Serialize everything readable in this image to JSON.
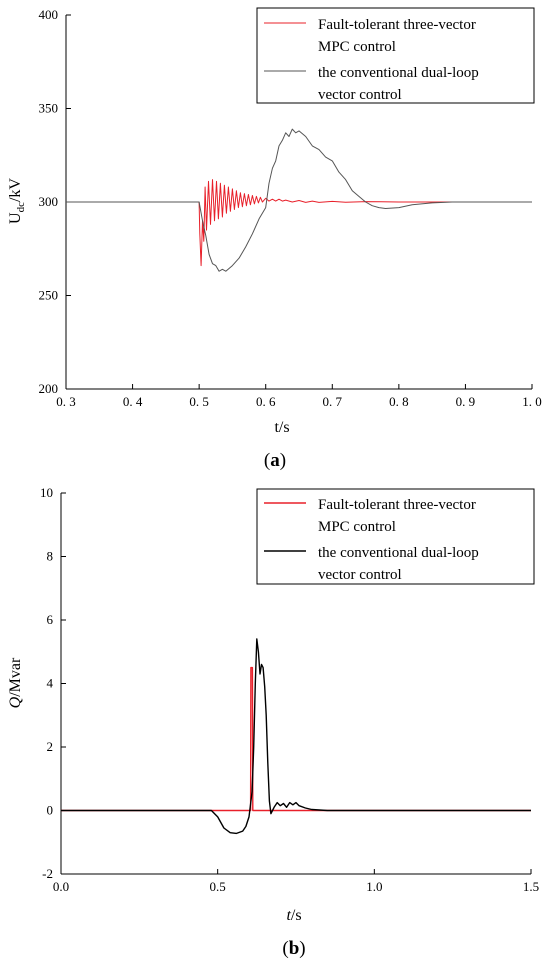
{
  "chart_data": [
    {
      "type": "line",
      "panel_label": "a",
      "xlabel": "t/s",
      "ylabel_main": "U",
      "ylabel_sub": "dc",
      "ylabel_rest": "/kV",
      "xlim": [
        0.3,
        1.0
      ],
      "ylim": [
        200,
        400
      ],
      "xticks": [
        0.3,
        0.4,
        0.5,
        0.6,
        0.7,
        0.8,
        0.9,
        1.0
      ],
      "xtick_labels": [
        "0. 3",
        "0. 4",
        "0. 5",
        "0. 6",
        "0. 7",
        "0. 8",
        "0. 9",
        "1. 0"
      ],
      "yticks": [
        200,
        250,
        300,
        350,
        400
      ],
      "ytick_labels": [
        "200",
        "250",
        "300",
        "350",
        "400"
      ],
      "legend_position": "top-right",
      "series": [
        {
          "name_lines": [
            "Fault-tolerant three-vector",
            "MPC control"
          ],
          "color": "#e8202a",
          "x": [
            0.3,
            0.5,
            0.501,
            0.503,
            0.505,
            0.507,
            0.509,
            0.511,
            0.514,
            0.517,
            0.52,
            0.523,
            0.526,
            0.529,
            0.532,
            0.535,
            0.538,
            0.541,
            0.544,
            0.547,
            0.55,
            0.553,
            0.556,
            0.559,
            0.562,
            0.565,
            0.568,
            0.571,
            0.574,
            0.577,
            0.58,
            0.583,
            0.586,
            0.589,
            0.592,
            0.595,
            0.6,
            0.605,
            0.61,
            0.615,
            0.62,
            0.625,
            0.63,
            0.64,
            0.65,
            0.66,
            0.67,
            0.68,
            0.7,
            0.72,
            0.75,
            0.8,
            0.85,
            0.9,
            1.0
          ],
          "y": [
            300,
            300,
            283,
            266,
            290,
            279,
            308,
            285,
            311,
            288,
            312,
            290,
            311,
            291,
            310,
            292,
            309,
            294,
            308,
            295,
            307,
            296,
            306,
            297,
            305,
            297.5,
            304.5,
            298,
            304,
            298.5,
            303.5,
            299,
            303,
            299.5,
            302.5,
            300,
            302,
            300.5,
            301.5,
            300.5,
            301.5,
            300.5,
            301,
            300,
            300.8,
            299.8,
            300.5,
            299.8,
            300.3,
            299.9,
            300.2,
            300,
            300,
            300,
            300
          ]
        },
        {
          "name_lines": [
            "the conventional dual-loop",
            "vector control"
          ],
          "color": "#555555",
          "x": [
            0.3,
            0.5,
            0.505,
            0.51,
            0.515,
            0.52,
            0.525,
            0.53,
            0.535,
            0.54,
            0.55,
            0.56,
            0.57,
            0.58,
            0.59,
            0.6,
            0.605,
            0.61,
            0.615,
            0.62,
            0.625,
            0.63,
            0.635,
            0.64,
            0.645,
            0.65,
            0.66,
            0.67,
            0.68,
            0.69,
            0.7,
            0.71,
            0.72,
            0.73,
            0.74,
            0.75,
            0.76,
            0.77,
            0.78,
            0.8,
            0.82,
            0.85,
            0.88,
            0.9,
            1.0
          ],
          "y": [
            300,
            300,
            290,
            282,
            272,
            267,
            266,
            263,
            264,
            263,
            266,
            270,
            276,
            283,
            291,
            297,
            310,
            318,
            322,
            330,
            333,
            337,
            335,
            339,
            337,
            338,
            335,
            330,
            328,
            324,
            322,
            316,
            312,
            306,
            303,
            300,
            298,
            297,
            296.5,
            297,
            298.5,
            299.5,
            300,
            300,
            300
          ]
        }
      ]
    },
    {
      "type": "line",
      "panel_label": "b",
      "xlabel_italic": "t",
      "xlabel_rest": "/s",
      "ylabel_italic": "Q",
      "ylabel_rest": "/Mvar",
      "xlim": [
        0.0,
        1.5
      ],
      "ylim": [
        -2,
        10
      ],
      "xticks": [
        0.0,
        0.5,
        1.0,
        1.5
      ],
      "xtick_labels": [
        "0.0",
        "0.5",
        "1.0",
        "1.5"
      ],
      "yticks": [
        -2,
        0,
        2,
        4,
        6,
        8,
        10
      ],
      "ytick_labels": [
        "-2",
        "0",
        "2",
        "4",
        "6",
        "8",
        "10"
      ],
      "legend_position": "top-right",
      "series": [
        {
          "name_lines": [
            "Fault-tolerant three-vector",
            "MPC control"
          ],
          "color": "#e8202a",
          "x": [
            0.0,
            0.605,
            0.606,
            0.607,
            0.608,
            0.609,
            0.61,
            0.611,
            0.612,
            1.5
          ],
          "y": [
            0,
            0,
            4.5,
            4.5,
            4.5,
            4.5,
            4.5,
            4.5,
            0,
            0
          ]
        },
        {
          "name_lines": [
            "the conventional dual-loop",
            "vector control"
          ],
          "color": "#000000",
          "x": [
            0.0,
            0.48,
            0.5,
            0.52,
            0.54,
            0.56,
            0.58,
            0.59,
            0.6,
            0.61,
            0.615,
            0.62,
            0.625,
            0.63,
            0.635,
            0.64,
            0.645,
            0.65,
            0.655,
            0.66,
            0.665,
            0.67,
            0.675,
            0.68,
            0.69,
            0.7,
            0.71,
            0.72,
            0.73,
            0.74,
            0.75,
            0.76,
            0.78,
            0.8,
            0.85,
            1.5
          ],
          "y": [
            0,
            0,
            -0.2,
            -0.55,
            -0.7,
            -0.72,
            -0.65,
            -0.5,
            -0.2,
            0.6,
            2.0,
            4.0,
            5.4,
            5.0,
            4.3,
            4.6,
            4.5,
            3.9,
            3.0,
            1.5,
            0.3,
            -0.1,
            0.0,
            0.1,
            0.25,
            0.15,
            0.22,
            0.1,
            0.25,
            0.18,
            0.25,
            0.15,
            0.08,
            0.03,
            0.0,
            0.0
          ]
        }
      ]
    }
  ]
}
